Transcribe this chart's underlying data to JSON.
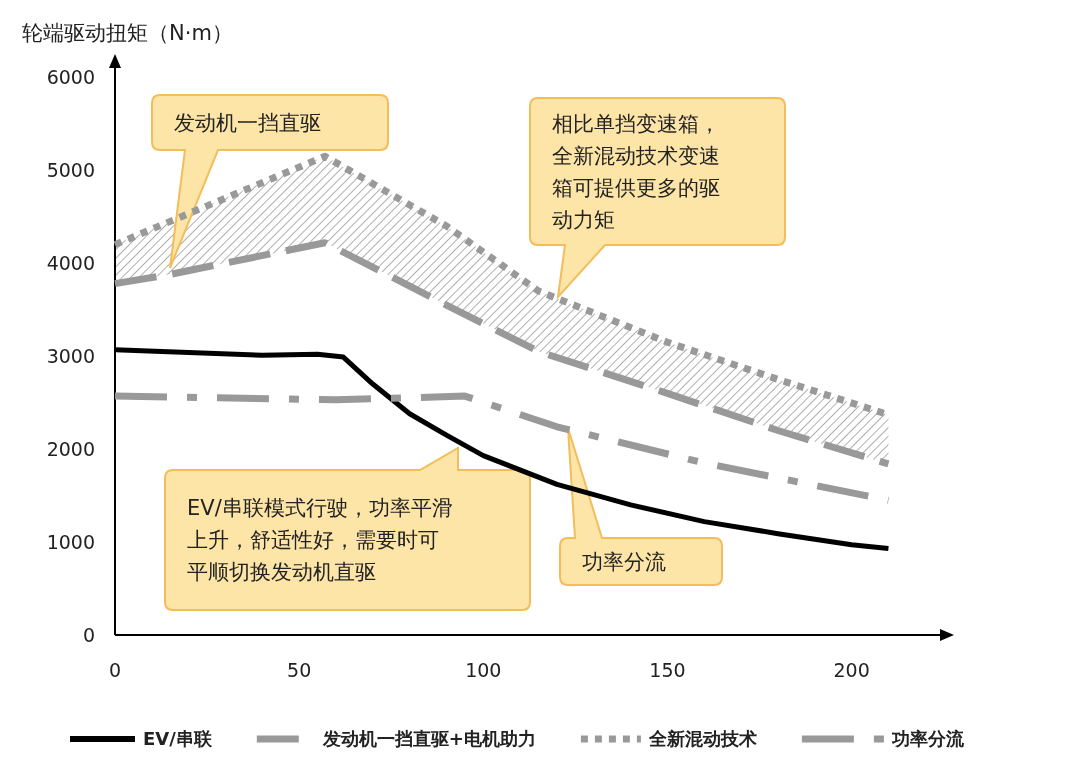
{
  "chart_data": {
    "type": "line",
    "ylabel": "轮端驱动扭矩（N·m）",
    "xlim": [
      0,
      224
    ],
    "ylim": [
      0,
      6100
    ],
    "xticks": [
      0,
      50,
      100,
      150,
      200
    ],
    "yticks": [
      0,
      1000,
      2000,
      3000,
      4000,
      5000,
      6000
    ],
    "grid": false,
    "legend": "bottom",
    "marker": "none",
    "series": [
      {
        "name": "EV/串联",
        "color": "#000000",
        "line_style": "solid",
        "x": [
          0,
          20,
          40,
          55,
          62,
          70,
          80,
          90,
          100,
          120,
          140,
          160,
          180,
          200,
          210
        ],
        "values": [
          3070,
          3040,
          3010,
          3020,
          2990,
          2700,
          2380,
          2150,
          1930,
          1620,
          1400,
          1220,
          1090,
          970,
          930
        ]
      },
      {
        "name": "发动机一挡直驱+电机助力",
        "color": "#999999",
        "line_style": "dashed",
        "x": [
          0,
          15,
          57,
          90,
          115,
          150,
          180,
          210
        ],
        "values": [
          3780,
          3880,
          4220,
          3550,
          3050,
          2600,
          2200,
          1840
        ]
      },
      {
        "name": "全新混动技术",
        "color": "#999999",
        "line_style": "dotted",
        "x": [
          0,
          15,
          57,
          90,
          115,
          150,
          180,
          210
        ],
        "values": [
          4200,
          4450,
          5150,
          4400,
          3700,
          3150,
          2750,
          2370
        ],
        "lower": [
          3780,
          3880,
          4220,
          3550,
          3050,
          2600,
          2200,
          1840
        ],
        "upper": [
          4200,
          4450,
          5150,
          4400,
          3700,
          3150,
          2750,
          2370
        ]
      },
      {
        "name": "功率分流",
        "color": "#999999",
        "line_style": "dashdot",
        "x": [
          0,
          60,
          95,
          120,
          160,
          210
        ],
        "values": [
          2570,
          2530,
          2570,
          2240,
          1850,
          1450
        ]
      }
    ],
    "annotations": [
      "发动机一挡直驱",
      "相比单挡变速箱，全新混动技术变速箱可提供更多的驱动力矩",
      "EV/串联模式行驶，功率平滑上升，舒适性好，需要时可平顺切换发动机直驱",
      "功率分流"
    ]
  }
}
